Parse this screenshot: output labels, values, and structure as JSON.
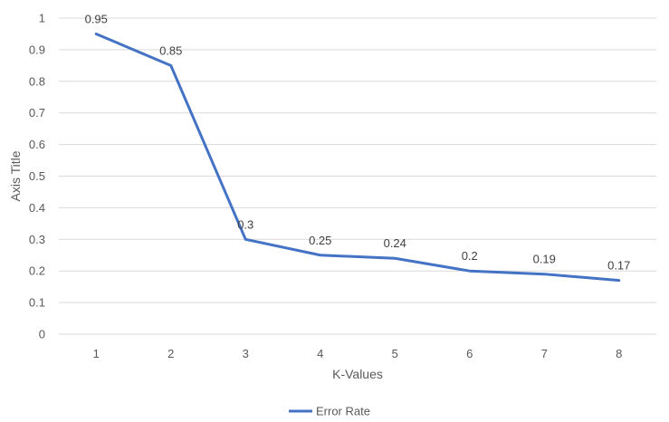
{
  "chart_data": {
    "type": "line",
    "title": "",
    "xlabel": "K-Values",
    "ylabel": "Axis Title",
    "categories": [
      "1",
      "2",
      "3",
      "4",
      "5",
      "6",
      "7",
      "8"
    ],
    "ylim": [
      0,
      1
    ],
    "yticks": [
      "0",
      "0.1",
      "0.2",
      "0.3",
      "0.4",
      "0.5",
      "0.6",
      "0.7",
      "0.8",
      "0.9",
      "1"
    ],
    "grid": true,
    "legend_position": "bottom",
    "series": [
      {
        "name": "Error Rate",
        "color": "#4472C4",
        "values": [
          0.95,
          0.85,
          0.3,
          0.25,
          0.24,
          0.2,
          0.19,
          0.17
        ],
        "labels": [
          "0.95",
          "0.85",
          "0.3",
          "0.25",
          "0.24",
          "0.2",
          "0.19",
          "0.17"
        ]
      }
    ]
  }
}
